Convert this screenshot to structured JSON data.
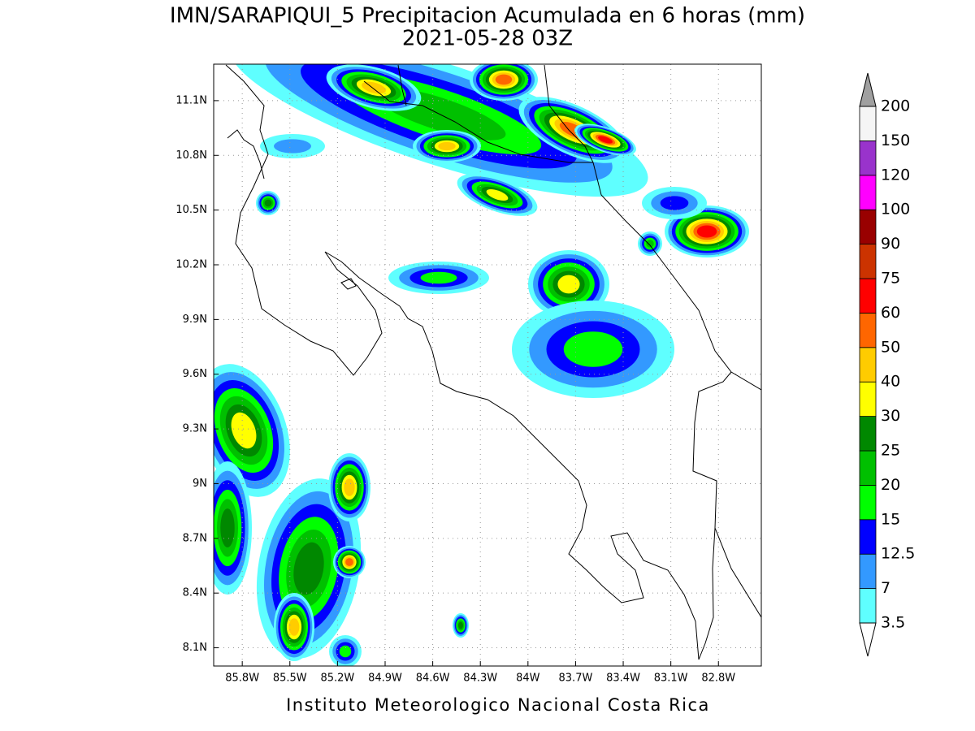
{
  "title": "IMN/SARAPIQUI_5 Precipitacion Acumulada en 6 horas (mm)",
  "subtitle": "2021-05-28 03Z",
  "footer": "Instituto Meteorologico Nacional Costa Rica",
  "map": {
    "xlim": [
      -85.98,
      -82.53
    ],
    "ylim": [
      8.0,
      11.3
    ],
    "grid": true,
    "xticks": [
      {
        "value": -85.8,
        "label": "85.8W"
      },
      {
        "value": -85.5,
        "label": "85.5W"
      },
      {
        "value": -85.2,
        "label": "85.2W"
      },
      {
        "value": -84.9,
        "label": "84.9W"
      },
      {
        "value": -84.6,
        "label": "84.6W"
      },
      {
        "value": -84.3,
        "label": "84.3W"
      },
      {
        "value": -84,
        "label": "84W"
      },
      {
        "value": -83.7,
        "label": "83.7W"
      },
      {
        "value": -83.4,
        "label": "83.4W"
      },
      {
        "value": -83.1,
        "label": "83.1W"
      },
      {
        "value": -82.8,
        "label": "82.8W"
      }
    ],
    "yticks": [
      {
        "value": 8.1,
        "label": "8.1N"
      },
      {
        "value": 8.4,
        "label": "8.4N"
      },
      {
        "value": 8.7,
        "label": "8.7N"
      },
      {
        "value": 9,
        "label": "9N"
      },
      {
        "value": 9.3,
        "label": "9.3N"
      },
      {
        "value": 9.6,
        "label": "9.6N"
      },
      {
        "value": 9.9,
        "label": "9.9N"
      },
      {
        "value": 10.2,
        "label": "10.2N"
      },
      {
        "value": 10.5,
        "label": "10.5N"
      },
      {
        "value": 10.8,
        "label": "10.8N"
      },
      {
        "value": 11.1,
        "label": "11.1N"
      }
    ]
  },
  "colorbar": {
    "levels": [
      3.5,
      7,
      12.5,
      15,
      20,
      25,
      30,
      40,
      50,
      60,
      75,
      90,
      100,
      120,
      150,
      200
    ],
    "colors": [
      "#5fffff",
      "#3399ff",
      "#0000ff",
      "#00ff00",
      "#00c000",
      "#008800",
      "#ffff00",
      "#ffcc00",
      "#ff6600",
      "#ff0000",
      "#cc3300",
      "#990000",
      "#ff00ff",
      "#9933cc",
      "#f5f5f5"
    ],
    "under_color": "#ffffff",
    "over_color": "#a0a0a0"
  }
}
